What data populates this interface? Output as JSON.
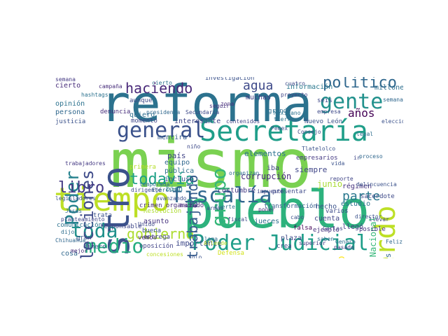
{
  "words": [
    {
      "text": "mismo",
      "color": "#7ad151",
      "vertical": false
    },
    {
      "text": "pueblo",
      "color": "#2db27d",
      "vertical": false
    },
    {
      "text": "reforma",
      "color": "#2c728e",
      "vertical": false
    },
    {
      "text": "tiempo",
      "color": "#bddf26",
      "vertical": false
    },
    {
      "text": "Secretaría",
      "color": "#1f9e89",
      "vertical": false
    },
    {
      "text": "maestro",
      "color": "#3b528b",
      "vertical": true
    },
    {
      "text": "acuerdo",
      "color": "#bddf26",
      "vertical": true
    },
    {
      "text": "Poder Judicial",
      "color": "#1f9e89",
      "vertical": false
    },
    {
      "text": "fiscalía",
      "color": "#31688e",
      "vertical": false
    },
    {
      "text": "general",
      "color": "#3b528b",
      "vertical": false
    },
    {
      "text": "toda",
      "color": "#21918c",
      "vertical": false
    },
    {
      "text": "medio",
      "color": "#27ad81",
      "vertical": false
    },
    {
      "text": "gente",
      "color": "#21918c",
      "vertical": false
    },
    {
      "text": "político",
      "color": "#31688e",
      "vertical": false
    },
    {
      "text": "elecciones",
      "color": "#3e4a89",
      "vertical": true
    },
    {
      "text": "Poder",
      "color": "#26828e",
      "vertical": true
    },
    {
      "text": "grupo",
      "color": "#35b779",
      "vertical": true
    },
    {
      "text": "todavía",
      "color": "#1fa187",
      "vertical": false
    },
    {
      "text": "haciendo",
      "color": "#482878",
      "vertical": false
    },
    {
      "text": "gobierno",
      "color": "#addc30",
      "vertical": false
    },
    {
      "text": "libro",
      "color": "#443983",
      "vertical": false
    },
    {
      "text": "trabajando",
      "color": "#365c8d",
      "vertical": true
    },
    {
      "text": "agua",
      "color": "#3e4989",
      "vertical": false
    },
    {
      "text": "parte",
      "color": "#2a788e",
      "vertical": false
    },
    {
      "text": "años",
      "color": "#440154",
      "vertical": false
    },
    {
      "text": "cuerpo",
      "color": "#fde725",
      "vertical": true
    },
    {
      "text": "Guardia Nacional",
      "color": "#35b779",
      "vertical": true
    },
    {
      "text": "investigaciones",
      "color": "#31688e",
      "vertical": true
    },
    {
      "text": "información",
      "color": "#2a788e",
      "vertical": false
    },
    {
      "text": "investigación",
      "color": "#3b528b",
      "vertical": false
    },
    {
      "text": "corrupción",
      "color": "#472d7b",
      "vertical": false
    },
    {
      "text": "elementos",
      "color": "#2c728e",
      "vertical": false
    },
    {
      "text": "siempre",
      "color": "#404688",
      "vertical": false
    },
    {
      "text": "junio",
      "color": "#a8db34",
      "vertical": false
    },
    {
      "text": "estudio",
      "color": "#2c728e",
      "vertical": false
    },
    {
      "text": "hecho",
      "color": "#3b528b",
      "vertical": false
    },
    {
      "text": "régimen",
      "color": "#46337e",
      "vertical": false
    },
    {
      "text": "sacerdote",
      "color": "#3e4a89",
      "vertical": false
    },
    {
      "text": "llegó",
      "color": "#443983",
      "vertical": false
    },
    {
      "text": "país",
      "color": "#414487",
      "vertical": false
    },
    {
      "text": "equipo",
      "color": "#31688e",
      "vertical": false
    },
    {
      "text": "pública",
      "color": "#2e6f8e",
      "vertical": false
    },
    {
      "text": "incluso",
      "color": "#3b528b",
      "vertical": false
    },
    {
      "text": "bien",
      "color": "#27808e",
      "vertical": false
    },
    {
      "text": "costumbre",
      "color": "#443983",
      "vertical": false
    },
    {
      "text": "asunto",
      "color": "#46327e",
      "vertical": false
    },
    {
      "text": "entrega",
      "color": "#414487",
      "vertical": false
    },
    {
      "text": "dinero",
      "color": "#3b528b",
      "vertical": false
    },
    {
      "text": "importante",
      "color": "#3e4989",
      "vertical": false
    },
    {
      "text": "opinión",
      "color": "#2c728e",
      "vertical": false
    },
    {
      "text": "persona",
      "color": "#31688e",
      "vertical": false
    },
    {
      "text": "justicia",
      "color": "#3b528b",
      "vertical": false
    },
    {
      "text": "cierto",
      "color": "#472c7a",
      "vertical": false
    },
    {
      "text": "mentira",
      "color": "#365c8d",
      "vertical": false
    },
    {
      "text": "quiero",
      "color": "#2e6e8e",
      "vertical": false
    },
    {
      "text": "momento",
      "color": "#3f4788",
      "vertical": false
    },
    {
      "text": "interesante",
      "color": "#404688",
      "vertical": false
    },
    {
      "text": "denuncia",
      "color": "#472d7b",
      "vertical": false
    },
    {
      "text": "aunque",
      "color": "#3e4a89",
      "vertical": false
    },
    {
      "text": "hashtags",
      "color": "#2c728e",
      "vertical": false
    },
    {
      "text": "muchas",
      "color": "#433e85",
      "vertical": false
    },
    {
      "text": "seis",
      "color": "#3f4788",
      "vertical": false
    },
    {
      "text": "millones",
      "color": "#2e6e8e",
      "vertical": false
    },
    {
      "text": "semana",
      "color": "#31688e",
      "vertical": false
    },
    {
      "text": "Nuevo León",
      "color": "#3b528b",
      "vertical": false
    },
    {
      "text": "cuenta",
      "color": "#414487",
      "vertical": false
    },
    {
      "text": "varios",
      "color": "#3e4a89",
      "vertical": false
    },
    {
      "text": "falsa",
      "color": "#440154",
      "vertical": false
    },
    {
      "text": "ejemplo",
      "color": "#46337e",
      "vertical": false
    },
    {
      "text": "jueces",
      "color": "#2e6e8e",
      "vertical": false
    },
    {
      "text": "transformación",
      "color": "#365c8d",
      "vertical": false
    },
    {
      "text": "plaza",
      "color": "#3e4989",
      "vertical": false
    },
    {
      "text": "buena",
      "color": "#3b528b",
      "vertical": false
    },
    {
      "text": "vemos",
      "color": "#472d7b",
      "vertical": false
    },
    {
      "text": "oposición",
      "color": "#414487",
      "vertical": false
    },
    {
      "text": "cosa",
      "color": "#31688e",
      "vertical": false
    },
    {
      "text": "comunicación",
      "color": "#2c728e",
      "vertical": false
    },
    {
      "text": "responsable",
      "color": "#3f4788",
      "vertical": false
    },
    {
      "text": "gran",
      "color": "#3b528b",
      "vertical": false
    },
    {
      "text": "Defensa",
      "color": "#d2e21b",
      "vertical": false
    },
    {
      "text": "presentar",
      "color": "#3e4a89",
      "vertical": false
    },
    {
      "text": "proyecto",
      "color": "#404688",
      "vertical": false
    },
    {
      "text": "grande",
      "color": "#2e6e8e",
      "vertical": false
    },
    {
      "text": "Pemex",
      "color": "#3b528b",
      "vertical": false
    },
    {
      "text": "empresarios",
      "color": "#443983",
      "vertical": false
    },
    {
      "text": "Mexicano",
      "color": "#2c728e",
      "vertical": false
    },
    {
      "text": "fiscal",
      "color": "#3e4989",
      "vertical": false
    },
    {
      "text": "Carlos",
      "color": "#404688",
      "vertical": false
    },
    {
      "text": "presidenta",
      "color": "#31688e",
      "vertical": false
    },
    {
      "text": "seguir",
      "color": "#46337e",
      "vertical": false
    },
    {
      "text": "zona",
      "color": "#472d7b",
      "vertical": false
    },
    {
      "text": "avanzando",
      "color": "#3b528b",
      "vertical": false
    },
    {
      "text": "crimen organizado",
      "color": "#472c7a",
      "vertical": false
    },
    {
      "text": "Ejército",
      "color": "#31688e",
      "vertical": false
    },
    {
      "text": "niño",
      "color": "#3e4a89",
      "vertical": false
    },
    {
      "text": "llama",
      "color": "#2e6e8e",
      "vertical": false
    },
    {
      "text": "fuerte",
      "color": "#2c728e",
      "vertical": false
    },
    {
      "text": "pasado",
      "color": "#443983",
      "vertical": false
    },
    {
      "text": "primera",
      "color": "#b5de2b",
      "vertical": false
    },
    {
      "text": "Consejo",
      "color": "#3e4989",
      "vertical": false
    },
    {
      "text": "iba",
      "color": "#414487",
      "vertical": false
    },
    {
      "text": "Tlatelolco",
      "color": "#3b528b",
      "vertical": false
    },
    {
      "text": "legal",
      "color": "#2e6e8e",
      "vertical": false
    },
    {
      "text": "ir",
      "color": "#3f4788",
      "vertical": false
    },
    {
      "text": "posible",
      "color": "#46337e",
      "vertical": false
    },
    {
      "text": "llevar",
      "color": "#404688",
      "vertical": false
    },
    {
      "text": "Feliz",
      "color": "#31688e",
      "vertical": false
    },
    {
      "text": "cabo",
      "color": "#3b528b",
      "vertical": false
    },
    {
      "text": "crea",
      "color": "#3e4a89",
      "vertical": false
    },
    {
      "text": "poner",
      "color": "#472d7b",
      "vertical": false
    },
    {
      "text": "tierra",
      "color": "#2c728e",
      "vertical": false
    },
    {
      "text": "dijo",
      "color": "#2e6e8e",
      "vertical": false
    },
    {
      "text": "trata",
      "color": "#3b528b",
      "vertical": false
    },
    {
      "text": "Unido",
      "color": "#3e4989",
      "vertical": false
    },
    {
      "text": "mejor",
      "color": "#472c7a",
      "vertical": false
    },
    {
      "text": "Chihuahua",
      "color": "#31688e",
      "vertical": false
    },
    {
      "text": "planteamiento",
      "color": "#404688",
      "vertical": false
    },
    {
      "text": "legisladores",
      "color": "#3b528b",
      "vertical": false
    },
    {
      "text": "trabajadores",
      "color": "#443983",
      "vertical": false
    },
    {
      "text": "temporada",
      "color": "#2e6e8e",
      "vertical": false
    },
    {
      "text": "Secundaria",
      "color": "#3e4a89",
      "vertical": false
    },
    {
      "text": "concesiones",
      "color": "#bddf26",
      "vertical": false
    },
    {
      "text": "solo",
      "color": "#3b528b",
      "vertical": false
    },
    {
      "text": "Resolución",
      "color": "#addc30",
      "vertical": false
    },
    {
      "text": "dirigente",
      "color": "#3e4989",
      "vertical": false
    },
    {
      "text": "organizan",
      "color": "#2e6e8e",
      "vertical": false
    },
    {
      "text": "reporte",
      "color": "#404688",
      "vertical": false
    },
    {
      "text": "proceso",
      "color": "#31688e",
      "vertical": false
    },
    {
      "text": "delincuencia",
      "color": "#3b528b",
      "vertical": false
    },
    {
      "text": "hacia",
      "color": "#472d7b",
      "vertical": false
    },
    {
      "text": "cuatro",
      "color": "#3e4a89",
      "vertical": false
    },
    {
      "text": "cierto",
      "color": "#2c728e",
      "vertical": false
    },
    {
      "text": "superior",
      "color": "#443983",
      "vertical": false
    },
    {
      "text": "saben",
      "color": "#2e6e8e",
      "vertical": false
    },
    {
      "text": "director",
      "color": "#3b528b",
      "vertical": false
    },
    {
      "text": "impuesto",
      "color": "#404688",
      "vertical": false
    },
    {
      "text": "campaña",
      "color": "#472c7a",
      "vertical": false
    },
    {
      "text": "armas",
      "color": "#3e4989",
      "vertical": false
    },
    {
      "text": "Jesús",
      "color": "#31688e",
      "vertical": false
    },
    {
      "text": "Allende",
      "color": "#b5de2b",
      "vertical": false
    },
    {
      "text": "vida",
      "color": "#3b528b",
      "vertical": false
    },
    {
      "text": "contenidos",
      "color": "#414487",
      "vertical": false
    },
    {
      "text": "Genaro",
      "color": "#2e6e8e",
      "vertical": false
    },
    {
      "text": "empresa",
      "color": "#3e4a89",
      "vertical": false
    },
    {
      "text": "elección",
      "color": "#3b528b",
      "vertical": false
    },
    {
      "text": "semana",
      "color": "#443983",
      "vertical": false
    }
  ]
}
